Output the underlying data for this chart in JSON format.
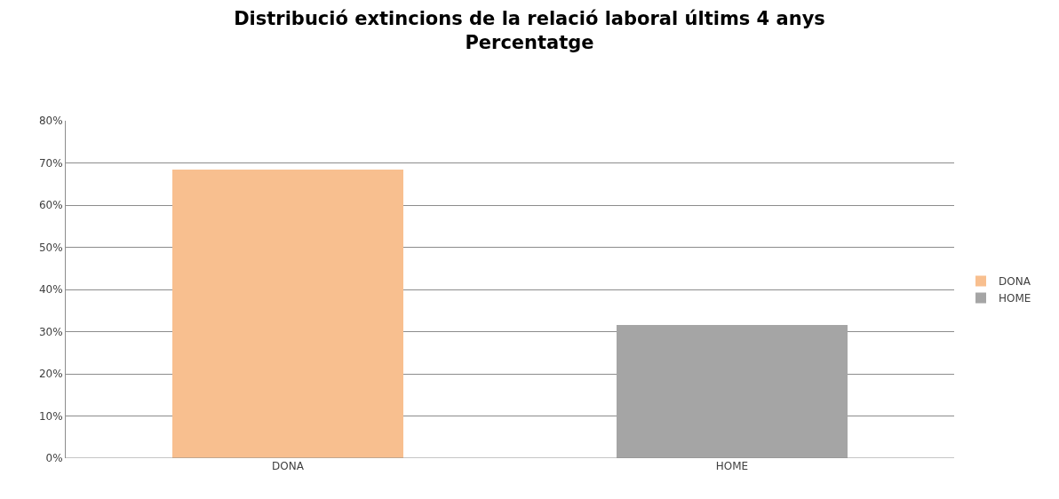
{
  "chart_data": {
    "type": "bar",
    "title": "Distribució extincions de la relació laboral últims 4 anys\nPercentatge",
    "categories": [
      "DONA",
      "HOME"
    ],
    "series": [
      {
        "name": "DONA",
        "color": "#f8bf8f",
        "values": [
          68.4,
          null
        ]
      },
      {
        "name": "HOME",
        "color": "#a5a5a5",
        "values": [
          null,
          31.6
        ]
      }
    ],
    "ylim": [
      0,
      80
    ],
    "yticks": [
      {
        "value": 0,
        "label": "0%"
      },
      {
        "value": 10,
        "label": "10%"
      },
      {
        "value": 20,
        "label": "20%"
      },
      {
        "value": 30,
        "label": "30%"
      },
      {
        "value": 40,
        "label": "40%"
      },
      {
        "value": 50,
        "label": "50%"
      },
      {
        "value": 60,
        "label": "60%"
      },
      {
        "value": 70,
        "label": "70%"
      },
      {
        "value": 80,
        "label": "80%"
      }
    ],
    "grid": "y",
    "legend": "right"
  }
}
